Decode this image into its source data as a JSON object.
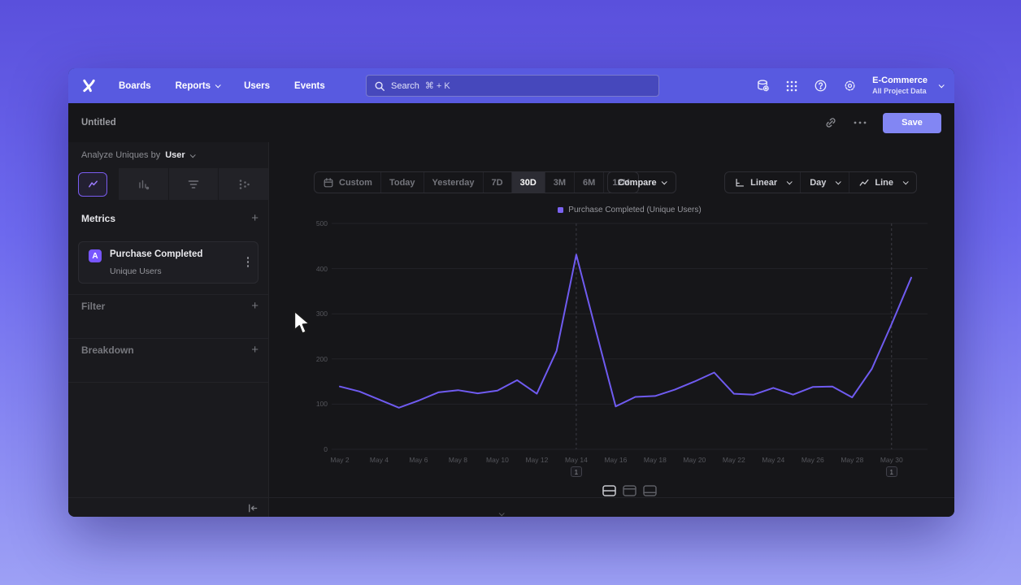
{
  "topbar": {
    "nav": [
      {
        "label": "Boards"
      },
      {
        "label": "Reports",
        "has_dropdown": true
      },
      {
        "label": "Users"
      },
      {
        "label": "Events"
      }
    ],
    "search_label": "Search",
    "search_shortcut": "⌘ + K",
    "project": {
      "name": "E-Commerce",
      "subtitle": "All Project Data"
    }
  },
  "titlebar": {
    "title": "Untitled",
    "save_label": "Save"
  },
  "sidebar": {
    "analyze_prefix": "Analyze Uniques by",
    "analyze_value": "User",
    "viz_tabs": [
      {
        "name": "insights-line",
        "selected": true
      },
      {
        "name": "bar-chart",
        "selected": false
      },
      {
        "name": "funnel",
        "selected": false
      },
      {
        "name": "flows",
        "selected": false
      }
    ],
    "metrics_header": "Metrics",
    "metric_card": {
      "badge": "A",
      "title": "Purchase Completed",
      "subtitle": "Unique Users"
    },
    "filter_header": "Filter",
    "breakdown_header": "Breakdown"
  },
  "toolbar": {
    "date_ranges": [
      "Custom",
      "Today",
      "Yesterday",
      "7D",
      "30D",
      "3M",
      "6M",
      "12M"
    ],
    "selected_range": "30D",
    "compare_label": "Compare",
    "scale_label": "Linear",
    "granularity_label": "Day",
    "chart_type_label": "Line"
  },
  "chart_data": {
    "type": "line",
    "title": "",
    "legend_position": "top-center",
    "grid": "horizontal",
    "ylim": [
      0,
      500
    ],
    "y_ticks": [
      0,
      100,
      200,
      300,
      400,
      500
    ],
    "x_tick_labels": [
      "May 2",
      "May 4",
      "May 6",
      "May 8",
      "May 10",
      "May 12",
      "May 14",
      "May 16",
      "May 18",
      "May 20",
      "May 22",
      "May 24",
      "May 26",
      "May 28",
      "May 30"
    ],
    "series": [
      {
        "name": "Purchase Completed (Unique Users)",
        "color": "#6f5bf0",
        "x": [
          "May 2",
          "May 3",
          "May 4",
          "May 5",
          "May 6",
          "May 7",
          "May 8",
          "May 9",
          "May 10",
          "May 11",
          "May 12",
          "May 13",
          "May 14",
          "May 15",
          "May 16",
          "May 17",
          "May 18",
          "May 19",
          "May 20",
          "May 21",
          "May 22",
          "May 23",
          "May 24",
          "May 25",
          "May 26",
          "May 27",
          "May 28",
          "May 29",
          "May 30",
          "May 31"
        ],
        "values": [
          139,
          128,
          110,
          92,
          108,
          126,
          131,
          124,
          130,
          153,
          123,
          218,
          431,
          262,
          95,
          116,
          118,
          132,
          150,
          170,
          123,
          121,
          136,
          121,
          138,
          139,
          115,
          178,
          277,
          380
        ]
      }
    ],
    "annotations": [
      {
        "label": "1",
        "date": "May 14"
      },
      {
        "label": "1",
        "date": "May 30"
      }
    ]
  },
  "footer": {
    "view_toggles": [
      "split-rows-view",
      "header-top-view",
      "header-bottom-view"
    ],
    "selected_toggle": "split-rows-view"
  },
  "colors": {
    "accent": "#7856ff",
    "topbar": "#585ae0",
    "save_button": "#8286f3",
    "line": "#6f5bf0",
    "grid": "#232328",
    "page_bg_top": "#5a50dc",
    "page_bg_bottom": "#9da0f5"
  }
}
